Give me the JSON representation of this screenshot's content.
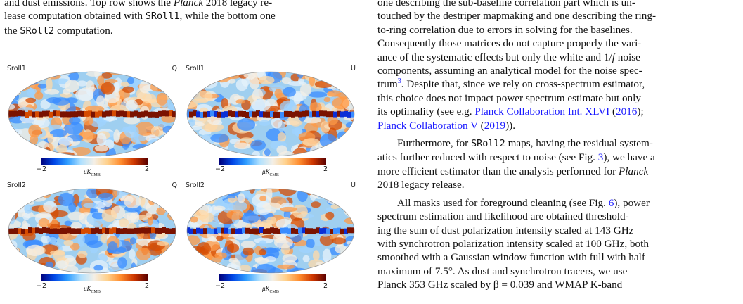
{
  "caption": {
    "line1": "and dust emissions. Top row shows the ",
    "planck": "Planck",
    "line1b": " 2018 legacy re-",
    "line2a": "lease computation obtained with ",
    "sroll1": "SRoll1",
    "line2b": ", while the bottom one",
    "line3a": "the ",
    "sroll2": "SRoll2",
    "line3b": " computation."
  },
  "panels": [
    {
      "left": "Sroll1",
      "right": "Q"
    },
    {
      "left": "Sroll1",
      "right": "U"
    },
    {
      "left": "Sroll2",
      "right": "Q"
    },
    {
      "left": "Sroll2",
      "right": "U"
    }
  ],
  "colorbar": {
    "min": "−2",
    "max": "2",
    "unit": "μK",
    "unit_sub": "CMB"
  },
  "body": {
    "l1": "one describing the sub-baseline correlation part which is un-",
    "l2": "touched by the destriper mapmaking and one describing the ring-",
    "l3": "to-ring correlation due to errors in solving for the baselines.",
    "l4": "Consequently those matrices do not capture properly the vari-",
    "l5": "ance of the systematic effects but only the white and 1/",
    "l5f": "f",
    "l5b": " noise",
    "l6": "components, assuming an analytical model for the noise spec-",
    "l7a": "trum",
    "l7sup": "3",
    "l7b": ". Despite that, since we rely on cross-spectrum estimator,",
    "l8": "this choice does not impact power spectrum estimate but only",
    "l9a": "its optimality (see e.g. ",
    "l9link": "Planck Collaboration Int. XLVI",
    "l9b": " (",
    "l9year": "2016",
    "l9c": ");",
    "l10link": "Planck Collaboration V",
    "l10a": " (",
    "l10year": "2019",
    "l10b": ")).",
    "p2a": "Furthermore, for ",
    "p2code": "SRoll2",
    "p2b": " maps, having the residual system-",
    "p2l2a": "atics further reduced with respect to noise (see Fig. ",
    "p2fig": "3",
    "p2l2b": "), we have a",
    "p2l3a": "more efficient estimator than the analysis performed for ",
    "p2planck": "Planck",
    "p2l4": "2018 legacy release.",
    "p3l1a": "All masks used for foreground cleaning (see Fig. ",
    "p3fig": "6",
    "p3l1b": "), power",
    "p3l2": "spectrum estimation and likelihood are obtained threshold-",
    "p3l3": "ing the sum of dust polarization intensity scaled at 143 GHz",
    "p3l4": "with synchrotron polarization intensity scaled at 100 GHz, both",
    "p3l5": "smoothed with a Gaussian window function with full with half",
    "p3l6": "maximum of 7.5°. As dust and synchrotron tracers, we use",
    "p3l7": "Planck 353 GHz scaled by β = 0.039 and WMAP K-band"
  }
}
